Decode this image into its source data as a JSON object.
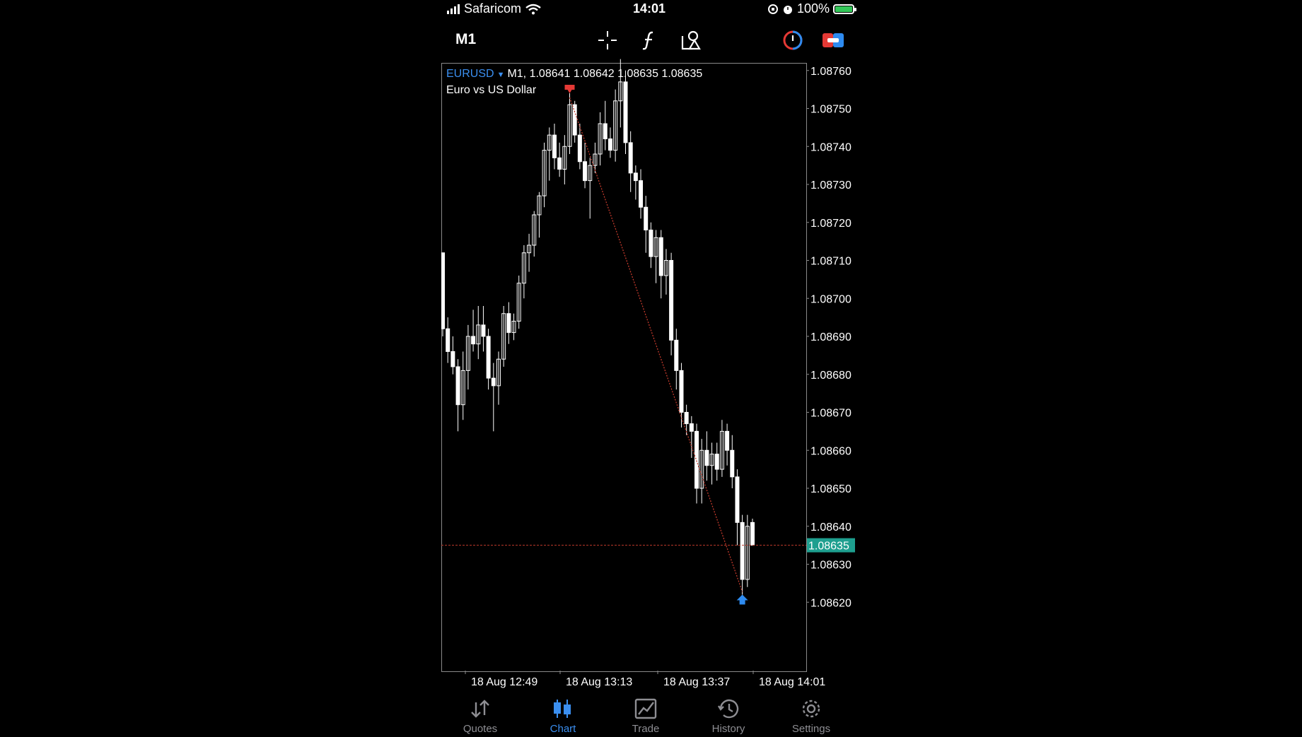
{
  "status_bar": {
    "carrier": "Safaricom",
    "time": "14:01",
    "battery": "100%"
  },
  "toolbar": {
    "timeframe": "M1",
    "tools": [
      "crosshair-icon",
      "indicators-icon",
      "objects-icon"
    ],
    "right_icons": [
      "account-icon",
      "trade-toggle-icon"
    ]
  },
  "chart": {
    "symbol": "EURUSD",
    "ohlc_line": "M1, 1.08641 1.08642 1.08635 1.08635",
    "description": "Euro vs US Dollar",
    "current_price": "1.08635",
    "colors": {
      "background": "#000000",
      "candle": "#ffffff",
      "price_line": "#c0392b",
      "price_label_bg": "#1e9f8f",
      "sell_arrow": "#e53935",
      "buy_arrow": "#2e8bf0"
    }
  },
  "chart_data": {
    "type": "candlestick",
    "symbol": "EURUSD",
    "timeframe": "M1",
    "y_ticks": [
      "1.08760",
      "1.08750",
      "1.08740",
      "1.08730",
      "1.08720",
      "1.08710",
      "1.08700",
      "1.08690",
      "1.08680",
      "1.08670",
      "1.08660",
      "1.08650",
      "1.08640",
      "1.08630",
      "1.08620"
    ],
    "x_ticks": [
      "18 Aug 12:49",
      "18 Aug 13:13",
      "18 Aug 13:37",
      "18 Aug 14:01"
    ],
    "ylim": [
      1.08602,
      1.08762
    ],
    "current_price": 1.08635,
    "candles": [
      [
        1.08712,
        1.08712,
        1.0869,
        1.08692
      ],
      [
        1.08692,
        1.08695,
        1.08683,
        1.08686
      ],
      [
        1.08686,
        1.0869,
        1.0868,
        1.08682
      ],
      [
        1.08682,
        1.08684,
        1.08665,
        1.08672
      ],
      [
        1.08672,
        1.08686,
        1.08668,
        1.08681
      ],
      [
        1.08681,
        1.08693,
        1.08676,
        1.0869
      ],
      [
        1.0869,
        1.08697,
        1.08686,
        1.08688
      ],
      [
        1.08688,
        1.08698,
        1.08684,
        1.08693
      ],
      [
        1.08693,
        1.08698,
        1.08686,
        1.0869
      ],
      [
        1.0869,
        1.08692,
        1.08676,
        1.08679
      ],
      [
        1.08679,
        1.08683,
        1.08665,
        1.08677
      ],
      [
        1.08677,
        1.08686,
        1.08672,
        1.08684
      ],
      [
        1.08684,
        1.08698,
        1.08682,
        1.08696
      ],
      [
        1.08696,
        1.08699,
        1.08688,
        1.08691
      ],
      [
        1.08691,
        1.08696,
        1.08689,
        1.08694
      ],
      [
        1.08694,
        1.08706,
        1.08692,
        1.08704
      ],
      [
        1.08704,
        1.08714,
        1.087,
        1.08712
      ],
      [
        1.08712,
        1.08717,
        1.08707,
        1.08714
      ],
      [
        1.08714,
        1.08723,
        1.08711,
        1.08722
      ],
      [
        1.08722,
        1.08728,
        1.08716,
        1.08727
      ],
      [
        1.08727,
        1.08741,
        1.08724,
        1.08739
      ],
      [
        1.08739,
        1.08745,
        1.08731,
        1.08743
      ],
      [
        1.08743,
        1.08746,
        1.08734,
        1.08737
      ],
      [
        1.08737,
        1.08741,
        1.08732,
        1.08734
      ],
      [
        1.08734,
        1.08743,
        1.0873,
        1.0874
      ],
      [
        1.0874,
        1.08754,
        1.08738,
        1.08751
      ],
      [
        1.08751,
        1.08752,
        1.08741,
        1.08743
      ],
      [
        1.08743,
        1.08746,
        1.08734,
        1.08736
      ],
      [
        1.08736,
        1.08741,
        1.08729,
        1.08731
      ],
      [
        1.08731,
        1.08737,
        1.08721,
        1.08735
      ],
      [
        1.08735,
        1.08741,
        1.08733,
        1.08738
      ],
      [
        1.08738,
        1.08749,
        1.08735,
        1.08746
      ],
      [
        1.08746,
        1.08752,
        1.08739,
        1.08742
      ],
      [
        1.08742,
        1.08745,
        1.08737,
        1.08739
      ],
      [
        1.08739,
        1.08755,
        1.08736,
        1.08752
      ],
      [
        1.08752,
        1.08763,
        1.08745,
        1.08757
      ],
      [
        1.08757,
        1.0876,
        1.08738,
        1.08741
      ],
      [
        1.08741,
        1.08744,
        1.08728,
        1.08733
      ],
      [
        1.08733,
        1.08735,
        1.08726,
        1.08731
      ],
      [
        1.08731,
        1.08734,
        1.08721,
        1.08724
      ],
      [
        1.08724,
        1.08727,
        1.08712,
        1.08718
      ],
      [
        1.08718,
        1.0872,
        1.08708,
        1.08711
      ],
      [
        1.08711,
        1.08718,
        1.08704,
        1.08716
      ],
      [
        1.08716,
        1.08718,
        1.087,
        1.08706
      ],
      [
        1.08706,
        1.08713,
        1.08701,
        1.0871
      ],
      [
        1.0871,
        1.08712,
        1.08685,
        1.08689
      ],
      [
        1.08689,
        1.08692,
        1.08676,
        1.08681
      ],
      [
        1.08681,
        1.08683,
        1.08666,
        1.0867
      ],
      [
        1.0867,
        1.08672,
        1.08664,
        1.08667
      ],
      [
        1.08667,
        1.08669,
        1.08658,
        1.08665
      ],
      [
        1.08665,
        1.08667,
        1.08646,
        1.0865
      ],
      [
        1.0865,
        1.08663,
        1.08646,
        1.0866
      ],
      [
        1.0866,
        1.08665,
        1.08652,
        1.08656
      ],
      [
        1.08656,
        1.08662,
        1.08651,
        1.08659
      ],
      [
        1.08659,
        1.08662,
        1.08652,
        1.08655
      ],
      [
        1.08655,
        1.08668,
        1.08653,
        1.08665
      ],
      [
        1.08665,
        1.08667,
        1.08656,
        1.0866
      ],
      [
        1.0866,
        1.08664,
        1.0865,
        1.08653
      ],
      [
        1.08653,
        1.08655,
        1.08635,
        1.08641
      ],
      [
        1.08641,
        1.08643,
        1.08622,
        1.08626
      ],
      [
        1.08626,
        1.08643,
        1.08624,
        1.0864
      ],
      [
        1.08641,
        1.08642,
        1.08635,
        1.08635
      ]
    ],
    "sell_marker_index": 25,
    "buy_marker_index": 59
  },
  "tabs": [
    {
      "label": "Quotes",
      "icon": "quotes-icon"
    },
    {
      "label": "Chart",
      "icon": "chart-icon"
    },
    {
      "label": "Trade",
      "icon": "trade-icon"
    },
    {
      "label": "History",
      "icon": "history-icon"
    },
    {
      "label": "Settings",
      "icon": "settings-icon"
    }
  ]
}
